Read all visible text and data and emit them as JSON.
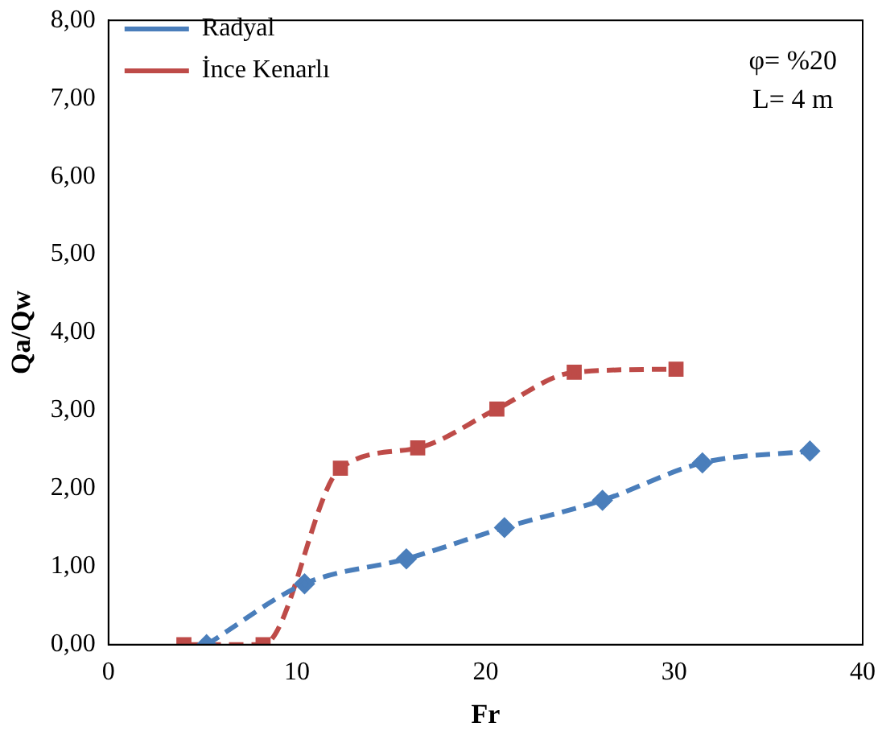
{
  "chart_data": {
    "type": "line",
    "xlabel": "Fr",
    "ylabel": "Qa/Qw",
    "series": [
      {
        "name": "Radyal",
        "color": "#4a7ebb",
        "marker": "diamond",
        "x": [
          5.2,
          10.4,
          15.8,
          21.0,
          26.2,
          31.5,
          37.2
        ],
        "values": [
          0,
          0.78,
          1.1,
          1.5,
          1.85,
          2.33,
          2.48
        ]
      },
      {
        "name": "İnce Kenarlı",
        "color": "#be4b48",
        "marker": "square",
        "x": [
          4.0,
          8.2,
          12.3,
          16.4,
          20.6,
          24.7,
          30.1
        ],
        "values": [
          0,
          0,
          2.26,
          2.52,
          3.02,
          3.49,
          3.53
        ]
      }
    ],
    "xlim": [
      0,
      40
    ],
    "xticks": [
      0,
      10,
      20,
      30,
      40
    ],
    "ylim": [
      0,
      8
    ],
    "yticks": [
      {
        "value": 0,
        "label": "0,00"
      },
      {
        "value": 1,
        "label": "1,00"
      },
      {
        "value": 2,
        "label": "2,00"
      },
      {
        "value": 3,
        "label": "3,00"
      },
      {
        "value": 4,
        "label": "4,00"
      },
      {
        "value": 5,
        "label": "5,00"
      },
      {
        "value": 6,
        "label": "6,00"
      },
      {
        "value": 7,
        "label": "7,00"
      },
      {
        "value": 8,
        "label": "8,00"
      }
    ],
    "grid": false,
    "legend": "top left",
    "line_style": "dashed",
    "annotations": [
      "φ= %20",
      "L= 4 m"
    ]
  }
}
